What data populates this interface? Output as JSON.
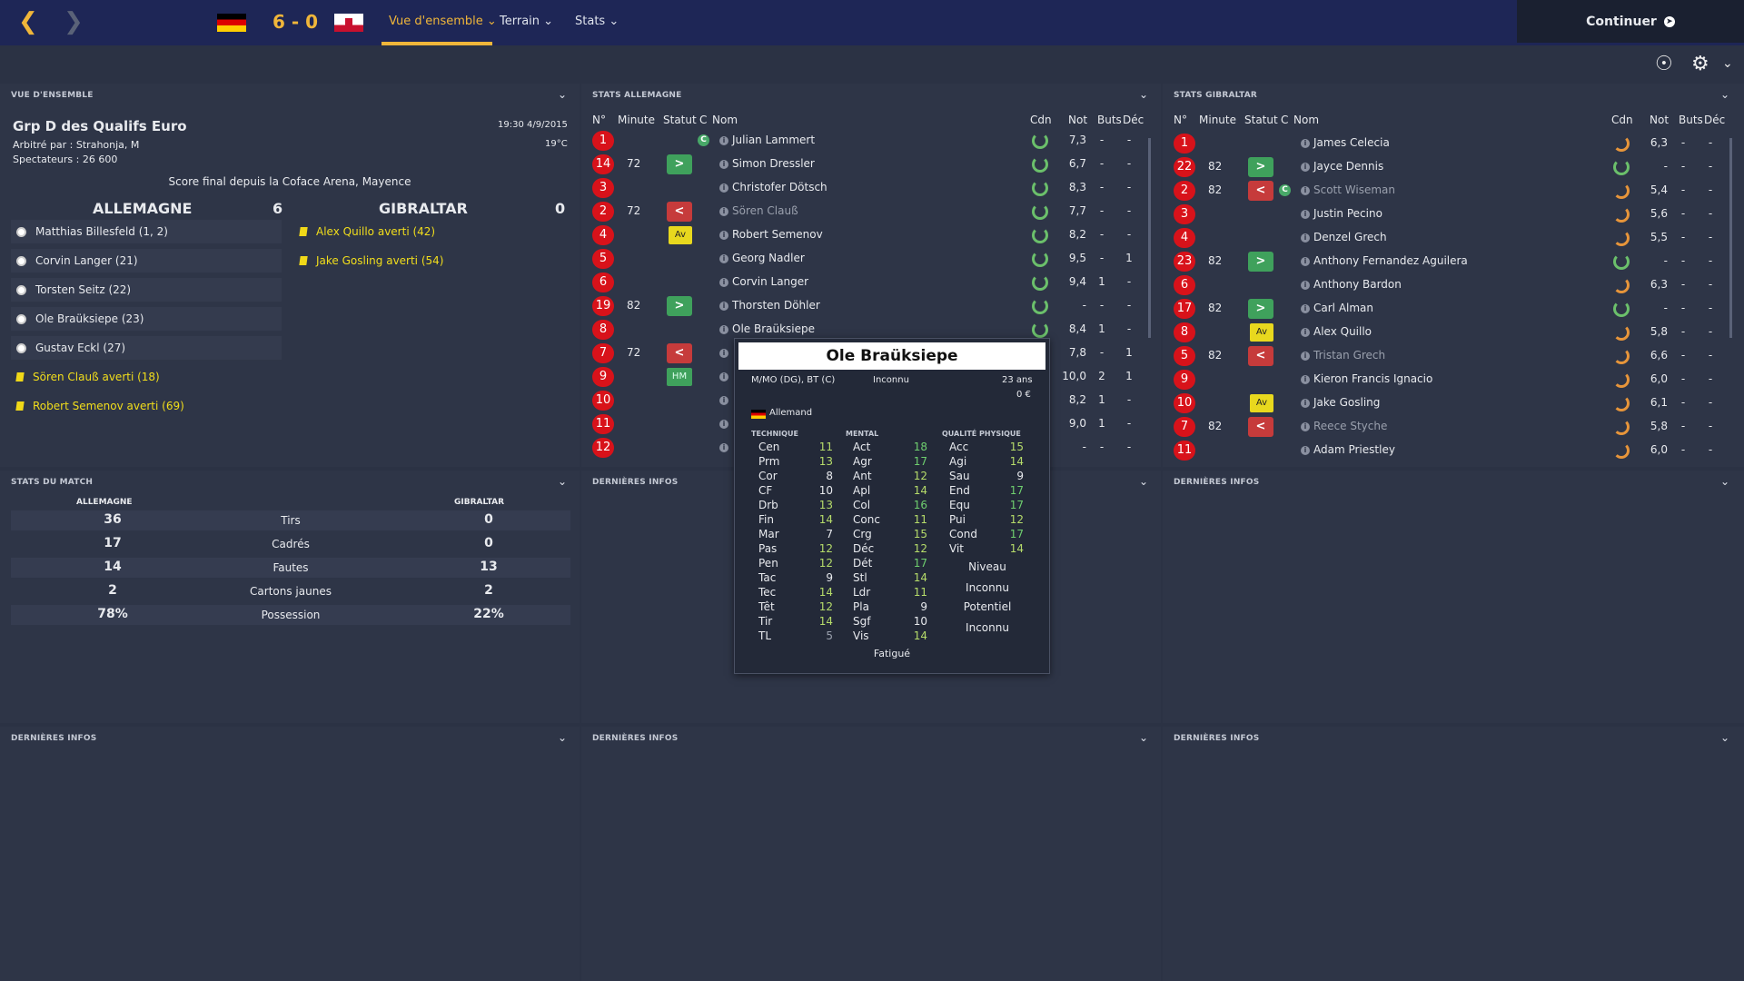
{
  "header": {
    "score": "6 - 0",
    "tabs": [
      "Vue d'ensemble",
      "Terrain",
      "Stats"
    ],
    "continue_label": "Continuer"
  },
  "overview": {
    "title": "VUE D'ENSEMBLE",
    "competition": "Grp D des Qualifs Euro",
    "datetime": "19:30 4/9/2015",
    "referee": "Arbitré par : Strahonja, M",
    "temperature": "19°C",
    "spectators": "Spectateurs : 26 600",
    "final": "Score final depuis la Coface Arena, Mayence",
    "home_name": "ALLEMAGNE",
    "home_score": "6",
    "away_name": "GIBRALTAR",
    "away_score": "0",
    "home_events": [
      {
        "text": "Matthias Billesfeld (1, 2)",
        "type": "goal"
      },
      {
        "text": "Corvin Langer (21)",
        "type": "goal"
      },
      {
        "text": "Torsten Seitz (22)",
        "type": "goal"
      },
      {
        "text": "Ole Braüksiepe (23)",
        "type": "goal"
      },
      {
        "text": "Gustav Eckl (27)",
        "type": "goal"
      },
      {
        "text": "Sören Clauß averti (18)",
        "type": "yellow"
      },
      {
        "text": "Robert Semenov averti (69)",
        "type": "yellow"
      }
    ],
    "away_events": [
      {
        "text": "Alex Quillo averti (42)",
        "type": "yellow"
      },
      {
        "text": "Jake Gosling averti (54)",
        "type": "yellow"
      }
    ]
  },
  "match_stats": {
    "title": "STATS DU MATCH",
    "home": "ALLEMAGNE",
    "away": "GIBRALTAR",
    "rows": [
      {
        "label": "Tirs",
        "home": "36",
        "away": "0"
      },
      {
        "label": "Cadrés",
        "home": "17",
        "away": "0"
      },
      {
        "label": "Fautes",
        "home": "14",
        "away": "13"
      },
      {
        "label": "Cartons jaunes",
        "home": "2",
        "away": "2"
      },
      {
        "label": "Possession",
        "home": "78%",
        "away": "22%"
      }
    ]
  },
  "stats_de": {
    "title": "STATS ALLEMAGNE",
    "headers": [
      "N°",
      "Minute",
      "Statut",
      "C",
      "Nom",
      "Cdn",
      "Not",
      "Buts",
      "Déc"
    ],
    "rows": [
      {
        "n": "1",
        "min": "",
        "status": "",
        "c": true,
        "name": "Julian Lammert",
        "cdn": "g",
        "not": "7,3",
        "buts": "-",
        "dec": "-"
      },
      {
        "n": "14",
        "min": "72",
        "status": "in",
        "c": false,
        "name": "Simon Dressler",
        "cdn": "g",
        "not": "6,7",
        "buts": "-",
        "dec": "-"
      },
      {
        "n": "3",
        "min": "",
        "status": "",
        "c": false,
        "name": "Christofer Dötsch",
        "cdn": "g",
        "not": "8,3",
        "buts": "-",
        "dec": "-"
      },
      {
        "n": "2",
        "min": "72",
        "status": "out",
        "c": false,
        "name": "Sören Clauß",
        "cdn": "g",
        "not": "7,7",
        "buts": "-",
        "dec": "-",
        "dim": true
      },
      {
        "n": "4",
        "min": "",
        "status": "Av",
        "c": false,
        "name": "Robert Semenov",
        "cdn": "g",
        "not": "8,2",
        "buts": "-",
        "dec": "-"
      },
      {
        "n": "5",
        "min": "",
        "status": "",
        "c": false,
        "name": "Georg Nadler",
        "cdn": "g",
        "not": "9,5",
        "buts": "-",
        "dec": "1"
      },
      {
        "n": "6",
        "min": "",
        "status": "",
        "c": false,
        "name": "Corvin Langer",
        "cdn": "g",
        "not": "9,4",
        "buts": "1",
        "dec": "-"
      },
      {
        "n": "19",
        "min": "82",
        "status": "in",
        "c": false,
        "name": "Thorsten Döhler",
        "cdn": "g",
        "not": "-",
        "buts": "-",
        "dec": "-"
      },
      {
        "n": "8",
        "min": "",
        "status": "",
        "c": false,
        "name": "Ole Braüksiepe",
        "cdn": "g",
        "not": "8,4",
        "buts": "1",
        "dec": "-"
      },
      {
        "n": "7",
        "min": "72",
        "status": "out",
        "c": false,
        "name": "",
        "cdn": "",
        "not": "7,8",
        "buts": "-",
        "dec": "1"
      },
      {
        "n": "9",
        "min": "",
        "status": "HM",
        "c": false,
        "name": "",
        "cdn": "",
        "not": "10,0",
        "buts": "2",
        "dec": "1"
      },
      {
        "n": "10",
        "min": "",
        "status": "",
        "c": false,
        "name": "",
        "cdn": "",
        "not": "8,2",
        "buts": "1",
        "dec": "-"
      },
      {
        "n": "11",
        "min": "",
        "status": "",
        "c": false,
        "name": "",
        "cdn": "",
        "not": "9,0",
        "buts": "1",
        "dec": "-"
      },
      {
        "n": "12",
        "min": "",
        "status": "",
        "c": false,
        "name": "",
        "cdn": "",
        "not": "-",
        "buts": "-",
        "dec": "-"
      }
    ]
  },
  "stats_gi": {
    "title": "STATS GIBRALTAR",
    "headers": [
      "N°",
      "Minute",
      "Statut",
      "C",
      "Nom",
      "Cdn",
      "Not",
      "Buts",
      "Déc"
    ],
    "rows": [
      {
        "n": "1",
        "min": "",
        "status": "",
        "c": false,
        "name": "James Celecia",
        "cdn": "o",
        "not": "6,3",
        "buts": "-",
        "dec": "-"
      },
      {
        "n": "22",
        "min": "82",
        "status": "in",
        "c": false,
        "name": "Jayce Dennis",
        "cdn": "g",
        "not": "-",
        "buts": "-",
        "dec": "-"
      },
      {
        "n": "2",
        "min": "82",
        "status": "out",
        "c": true,
        "name": "Scott Wiseman",
        "cdn": "o",
        "not": "5,4",
        "buts": "-",
        "dec": "-",
        "dim": true
      },
      {
        "n": "3",
        "min": "",
        "status": "",
        "c": false,
        "name": "Justin Pecino",
        "cdn": "o",
        "not": "5,6",
        "buts": "-",
        "dec": "-"
      },
      {
        "n": "4",
        "min": "",
        "status": "",
        "c": false,
        "name": "Denzel Grech",
        "cdn": "o",
        "not": "5,5",
        "buts": "-",
        "dec": "-"
      },
      {
        "n": "23",
        "min": "82",
        "status": "in",
        "c": false,
        "name": "Anthony Fernandez Aguilera",
        "cdn": "g",
        "not": "-",
        "buts": "-",
        "dec": "-"
      },
      {
        "n": "6",
        "min": "",
        "status": "",
        "c": false,
        "name": "Anthony Bardon",
        "cdn": "o",
        "not": "6,3",
        "buts": "-",
        "dec": "-"
      },
      {
        "n": "17",
        "min": "82",
        "status": "in",
        "c": false,
        "name": "Carl Alman",
        "cdn": "g",
        "not": "-",
        "buts": "-",
        "dec": "-"
      },
      {
        "n": "8",
        "min": "",
        "status": "Av",
        "c": false,
        "name": "Alex Quillo",
        "cdn": "o",
        "not": "5,8",
        "buts": "-",
        "dec": "-"
      },
      {
        "n": "5",
        "min": "82",
        "status": "out",
        "c": false,
        "name": "Tristan Grech",
        "cdn": "o",
        "not": "6,6",
        "buts": "-",
        "dec": "-",
        "dim": true
      },
      {
        "n": "9",
        "min": "",
        "status": "",
        "c": false,
        "name": "Kieron Francis Ignacio",
        "cdn": "o",
        "not": "6,0",
        "buts": "-",
        "dec": "-"
      },
      {
        "n": "10",
        "min": "",
        "status": "Av",
        "c": false,
        "name": "Jake Gosling",
        "cdn": "o",
        "not": "6,1",
        "buts": "-",
        "dec": "-"
      },
      {
        "n": "7",
        "min": "82",
        "status": "out",
        "c": false,
        "name": "Reece Styche",
        "cdn": "o",
        "not": "5,8",
        "buts": "-",
        "dec": "-",
        "dim": true
      },
      {
        "n": "11",
        "min": "",
        "status": "",
        "c": false,
        "name": "Adam Priestley",
        "cdn": "o",
        "not": "6,0",
        "buts": "-",
        "dec": "-"
      }
    ]
  },
  "news_label": "DERNIÈRES INFOS",
  "popup": {
    "name": "Ole Braüksiepe",
    "position": "M/MO (DG), BT (C)",
    "club": "Inconnu",
    "age": "23 ans",
    "value": "0 €",
    "nationality": "Allemand",
    "tech_title": "TECHNIQUE",
    "mental_title": "MENTAL",
    "phys_title": "QUALITÉ PHYSIQUE",
    "technique": [
      [
        "Cen",
        "11"
      ],
      [
        "Prm",
        "13"
      ],
      [
        "Cor",
        "8"
      ],
      [
        "CF",
        "10"
      ],
      [
        "Drb",
        "13"
      ],
      [
        "Fin",
        "14"
      ],
      [
        "Mar",
        "7"
      ],
      [
        "Pas",
        "12"
      ],
      [
        "Pen",
        "12"
      ],
      [
        "Tac",
        "9"
      ],
      [
        "Tec",
        "14"
      ],
      [
        "Têt",
        "12"
      ],
      [
        "Tir",
        "14"
      ],
      [
        "TL",
        "5"
      ]
    ],
    "mental": [
      [
        "Act",
        "18"
      ],
      [
        "Agr",
        "17"
      ],
      [
        "Ant",
        "12"
      ],
      [
        "Apl",
        "14"
      ],
      [
        "Col",
        "16"
      ],
      [
        "Conc",
        "11"
      ],
      [
        "Crg",
        "15"
      ],
      [
        "Déc",
        "12"
      ],
      [
        "Dét",
        "17"
      ],
      [
        "Stl",
        "14"
      ],
      [
        "Ldr",
        "11"
      ],
      [
        "Pla",
        "9"
      ],
      [
        "Sgf",
        "10"
      ],
      [
        "Vis",
        "14"
      ]
    ],
    "physical": [
      [
        "Acc",
        "15"
      ],
      [
        "Agi",
        "14"
      ],
      [
        "Sau",
        "9"
      ],
      [
        "End",
        "17"
      ],
      [
        "Equ",
        "17"
      ],
      [
        "Pui",
        "12"
      ],
      [
        "Cond",
        "17"
      ],
      [
        "Vit",
        "14"
      ]
    ],
    "niveau_label": "Niveau",
    "niveau_value": "Inconnu",
    "potentiel_label": "Potentiel",
    "potentiel_value": "Inconnu",
    "fatigue": "Fatigué"
  }
}
